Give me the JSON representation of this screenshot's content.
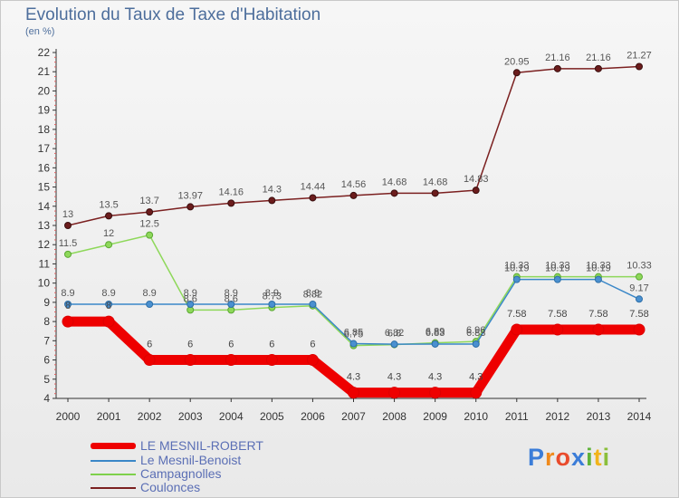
{
  "title": "Evolution du Taux de Taxe d'Habitation",
  "subtitle": "(en %)",
  "logo": "Proxiti",
  "chart_data": {
    "type": "line",
    "x": [
      "2000",
      "2001",
      "2002",
      "2003",
      "2004",
      "2005",
      "2006",
      "2007",
      "2008",
      "2009",
      "2010",
      "2011",
      "2012",
      "2013",
      "2014"
    ],
    "ylim": [
      4,
      22
    ],
    "y_ticks": [
      "4",
      "5",
      "6",
      "7",
      "8",
      "9",
      "10",
      "11",
      "12",
      "13",
      "14",
      "15",
      "16",
      "17",
      "18",
      "19",
      "20",
      "21",
      "22"
    ],
    "grid": false,
    "legend_position": "bottom-left",
    "series": [
      {
        "name": "LE MESNIL-ROBERT",
        "color": "#ee0000",
        "values": [
          8,
          8,
          6,
          6,
          6,
          6,
          6,
          4.3,
          4.3,
          4.3,
          4.3,
          7.58,
          7.58,
          7.58,
          7.58
        ],
        "labels": [
          "8",
          "8",
          "6",
          "6",
          "6",
          "6",
          "6",
          "4.3",
          "4.3",
          "4.3",
          "4.3",
          "7.58",
          "7.58",
          "7.58",
          "7.58"
        ]
      },
      {
        "name": "Le Mesnil-Benoist",
        "color": "#3a87c8",
        "values": [
          8.9,
          8.9,
          8.9,
          8.9,
          8.9,
          8.9,
          8.9,
          6.85,
          6.82,
          6.83,
          6.83,
          10.19,
          10.19,
          10.19,
          9.17
        ],
        "labels": [
          "8.9",
          "8.9",
          "8.9",
          "8.9",
          "8.9",
          "8.9",
          "8.9",
          "6.85",
          "6.82",
          "6.83",
          "6.83",
          "10.19",
          "10.19",
          "10.19",
          "9.17"
        ]
      },
      {
        "name": "Campagnolles",
        "color": "#7ed04b",
        "values": [
          11.5,
          12,
          12.5,
          8.6,
          8.6,
          8.73,
          8.82,
          6.75,
          6.8,
          6.89,
          6.96,
          10.33,
          10.33,
          10.33,
          10.33
        ],
        "labels": [
          "11.5",
          "12",
          "12.5",
          "8.6",
          "8.6",
          "8.73",
          "8.82",
          "6.75",
          "6.8",
          "6.89",
          "6.96",
          "10.33",
          "10.33",
          "10.33",
          "10.33"
        ]
      },
      {
        "name": "Coulonces",
        "color": "#7b2020",
        "values": [
          13,
          13.5,
          13.7,
          13.97,
          14.16,
          14.3,
          14.44,
          14.56,
          14.68,
          14.68,
          14.83,
          20.95,
          21.16,
          21.16,
          21.27
        ],
        "labels": [
          "13",
          "13.5",
          "13.7",
          "13.97",
          "14.16",
          "14.3",
          "14.44",
          "14.56",
          "14.68",
          "14.68",
          "14.83",
          "20.95",
          "21.16",
          "21.16",
          "21.27"
        ]
      }
    ]
  }
}
